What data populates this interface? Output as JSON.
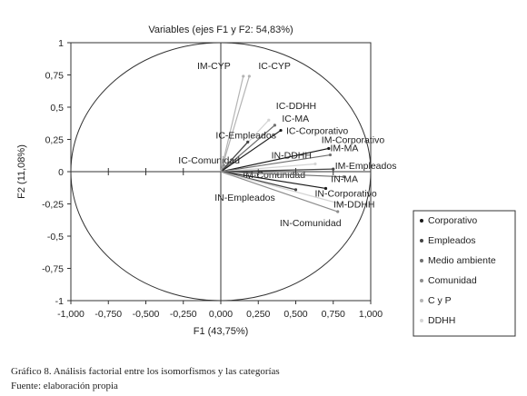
{
  "chart_data": {
    "type": "scatter",
    "title": "Variables (ejes F1 y F2: 54,83%)",
    "xlabel": "F1 (43,75%)",
    "ylabel": "F2 (11,08%)",
    "xlim": [
      -1,
      1
    ],
    "ylim": [
      -1,
      1
    ],
    "xticks": [
      "-1,000",
      "-0,750",
      "-0,500",
      "-0,250",
      "0,000",
      "0,250",
      "0,500",
      "0,750",
      "1,000"
    ],
    "yticks": [
      "1",
      "0,75",
      "0,5",
      "0,25",
      "0",
      "-0,25",
      "-0,5",
      "-0,75",
      "-1"
    ],
    "correlation_circle": true,
    "grid": false,
    "legend_position": "right",
    "legend": [
      {
        "name": "Corporativo",
        "color": "#1a1a1a"
      },
      {
        "name": "Empleados",
        "color": "#444444"
      },
      {
        "name": "Medio ambiente",
        "color": "#6e6e6e"
      },
      {
        "name": "Comunidad",
        "color": "#8c8c8c"
      },
      {
        "name": "C y P",
        "color": "#b4b4b4"
      },
      {
        "name": "DDHH",
        "color": "#d4d4d4"
      }
    ],
    "vectors": [
      {
        "label": "IM-CYP",
        "x": 0.15,
        "y": 0.74,
        "group": "C y P"
      },
      {
        "label": "IC-CYP",
        "x": 0.19,
        "y": 0.74,
        "group": "C y P"
      },
      {
        "label": "IC-DDHH",
        "x": 0.32,
        "y": 0.4,
        "group": "DDHH"
      },
      {
        "label": "IC-MA",
        "x": 0.36,
        "y": 0.36,
        "group": "Medio ambiente"
      },
      {
        "label": "IC-Corporativo",
        "x": 0.4,
        "y": 0.32,
        "group": "Corporativo"
      },
      {
        "label": "IC-Empleados",
        "x": 0.18,
        "y": 0.23,
        "group": "Empleados"
      },
      {
        "label": "IM-Corporativo",
        "x": 0.72,
        "y": 0.18,
        "group": "Corporativo"
      },
      {
        "label": "IM-MA",
        "x": 0.73,
        "y": 0.13,
        "group": "Medio ambiente"
      },
      {
        "label": "IN-DDHH",
        "x": 0.63,
        "y": 0.06,
        "group": "DDHH"
      },
      {
        "label": "IM-Empleados",
        "x": 0.75,
        "y": 0.02,
        "group": "Empleados"
      },
      {
        "label": "IM-Comunidad",
        "x": 0.38,
        "y": -0.02,
        "group": "Comunidad"
      },
      {
        "label": "IN-MA",
        "x": 0.82,
        "y": -0.04,
        "group": "Medio ambiente"
      },
      {
        "label": "IN-Corporativo",
        "x": 0.7,
        "y": -0.13,
        "group": "Corporativo"
      },
      {
        "label": "IN-Empleados",
        "x": 0.5,
        "y": -0.14,
        "group": "Empleados"
      },
      {
        "label": "IM-DDHH",
        "x": 0.8,
        "y": -0.25,
        "group": "DDHH"
      },
      {
        "label": "IN-Comunidad",
        "x": 0.78,
        "y": -0.31,
        "group": "Comunidad"
      },
      {
        "label": "IC-Comunidad",
        "x": 0.02,
        "y": 0.05,
        "group": "Comunidad"
      }
    ]
  },
  "caption": {
    "line1": "Gráfico 8. Análisis factorial entre los isomorfismos y las categorías",
    "line2": "Fuente: elaboración propia"
  }
}
